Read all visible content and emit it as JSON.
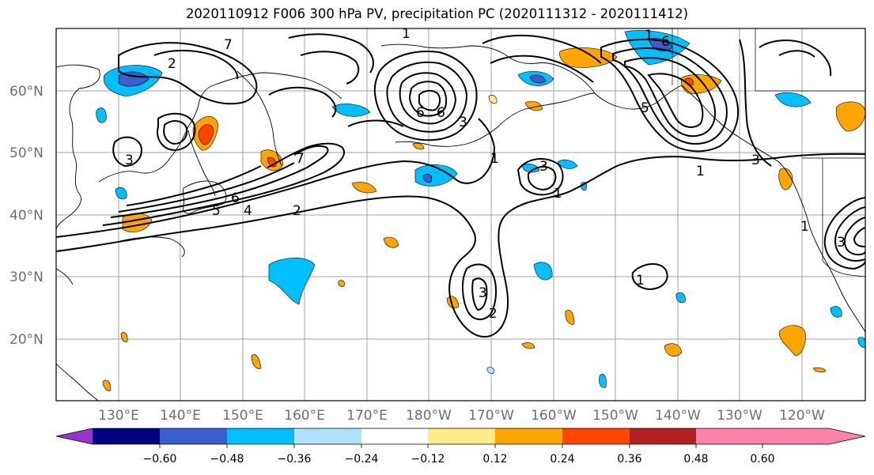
{
  "title": "2020110912 F006 300 hPa PV, precipitation PC (2020111312 - 2020111412)",
  "map": {
    "lat_labels": [
      "60°N",
      "50°N",
      "40°N",
      "30°N",
      "20°N"
    ],
    "lon_labels": [
      "130°E",
      "140°E",
      "150°E",
      "160°E",
      "170°E",
      "180°W",
      "170°W",
      "160°W",
      "150°W",
      "140°W",
      "130°W",
      "120°W"
    ],
    "pv_contour_labels": [
      "2",
      "1",
      "1",
      "3",
      "6",
      "5",
      "4",
      "2",
      "7",
      "3",
      "3",
      "2",
      "1",
      "1",
      "5",
      "3",
      "1",
      "1",
      "3",
      "6",
      "6",
      "3",
      "1",
      "7",
      "6"
    ],
    "colors": {
      "contour": "#000000",
      "coast": "#000000",
      "grid": "#a0a0a0"
    }
  },
  "colorbar": {
    "ticks": [
      "−0.60",
      "−0.48",
      "−0.36",
      "−0.24",
      "−0.12",
      "0.12",
      "0.24",
      "0.36",
      "0.48",
      "0.60"
    ],
    "colors": [
      "#9932cc",
      "#000080",
      "#3a5fcd",
      "#00bfff",
      "#b0e2ff",
      "#ffffff",
      "#ffec8b",
      "#ffa500",
      "#ff4500",
      "#b22222",
      "#ff82ab"
    ]
  }
}
